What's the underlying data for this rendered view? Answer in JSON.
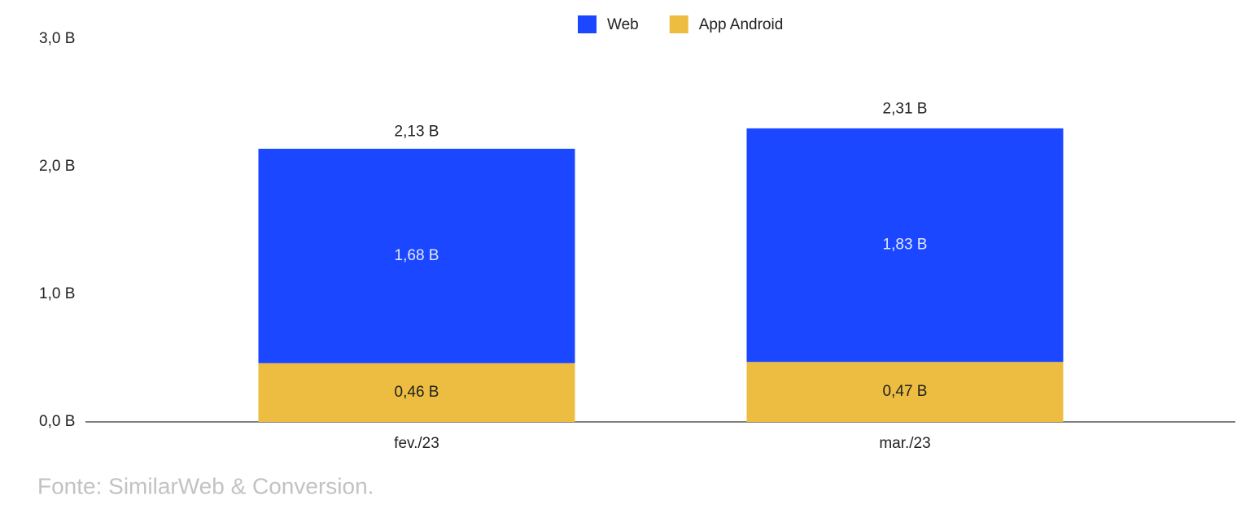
{
  "chart_data": {
    "type": "stacked_bar",
    "categories": [
      "fev./23",
      "mar./23"
    ],
    "series": [
      {
        "name": "Web",
        "color": "#1a47ff",
        "values": [
          1.68,
          1.83
        ],
        "value_labels": [
          "1,68 B",
          "1,83 B"
        ]
      },
      {
        "name": "App Android",
        "color": "#ecbd40",
        "values": [
          0.46,
          0.47
        ],
        "value_labels": [
          "0,46 B",
          "0,47 B"
        ]
      }
    ],
    "totals": {
      "values": [
        2.13,
        2.31
      ],
      "value_labels": [
        "2,13 B",
        "2,31 B"
      ]
    },
    "ylim": [
      0,
      3
    ],
    "yticks": [
      {
        "value": 0,
        "label": "0,0 B"
      },
      {
        "value": 1,
        "label": "1,0 B"
      },
      {
        "value": 2,
        "label": "2,0 B"
      },
      {
        "value": 3,
        "label": "3,0 B"
      }
    ],
    "grid": false,
    "legend": "top",
    "source": "Fonte: SimilarWeb & Conversion."
  }
}
